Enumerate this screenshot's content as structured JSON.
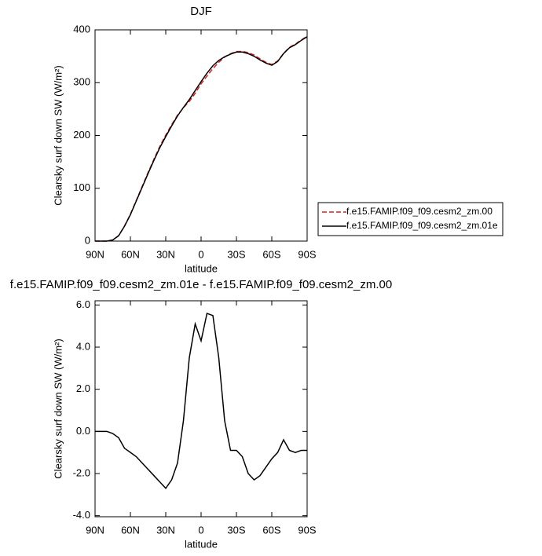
{
  "chart_data": [
    {
      "type": "line",
      "title": "DJF",
      "xlabel": "latitude",
      "ylabel": "Clearsky surf down SW (W/m²)",
      "x": [
        90,
        85,
        80,
        75,
        70,
        65,
        60,
        55,
        50,
        45,
        40,
        35,
        30,
        25,
        20,
        15,
        10,
        5,
        0,
        -5,
        -10,
        -15,
        -20,
        -25,
        -30,
        -35,
        -40,
        -45,
        -50,
        -55,
        -60,
        -65,
        -70,
        -75,
        -80,
        -85,
        -90
      ],
      "series": [
        {
          "name": "f.e15.FAMIP.f09_f09.cesm2_zm.00",
          "color": "#d62020",
          "linestyle": "dashed",
          "values": [
            0,
            0,
            0,
            2.1,
            10.3,
            28.8,
            51,
            77.2,
            103.5,
            129.8,
            155.1,
            179.4,
            200.7,
            220.3,
            238.5,
            252.5,
            264.5,
            279.9,
            297.7,
            312.4,
            326.5,
            338.5,
            348.5,
            354.9,
            358.9,
            359.2,
            357,
            352.3,
            345.1,
            338.7,
            334.3,
            341,
            355.4,
            366.9,
            373,
            380.9,
            387.9
          ]
        },
        {
          "name": "f.e15.FAMIP.f09_f09.cesm2_zm.01e",
          "color": "#000000",
          "linestyle": "solid",
          "values": [
            0,
            0,
            0,
            2,
            10,
            28,
            50,
            76,
            102,
            128,
            153,
            177,
            198,
            218,
            237,
            253,
            268,
            285,
            302,
            318,
            332,
            342,
            349,
            354,
            358,
            358,
            355,
            350,
            343,
            337,
            333,
            340,
            355,
            366,
            372,
            380,
            387
          ]
        }
      ],
      "xlim": [
        90,
        -90
      ],
      "xticks": [
        {
          "value": 90,
          "label": "90N"
        },
        {
          "value": 60,
          "label": "60N"
        },
        {
          "value": 30,
          "label": "30N"
        },
        0,
        {
          "value": -30,
          "label": "30S"
        },
        {
          "value": -60,
          "label": "60S"
        },
        {
          "value": -90,
          "label": "90S"
        }
      ],
      "ylim": [
        0,
        400
      ],
      "yticks": [
        0,
        100,
        200,
        300,
        400
      ],
      "legend": "right"
    },
    {
      "type": "line",
      "title": "f.e15.FAMIP.f09_f09.cesm2_zm.01e - f.e15.FAMIP.f09_f09.cesm2_zm.00",
      "xlabel": "latitude",
      "ylabel": "Clearsky surf down SW (W/m²)",
      "x": [
        90,
        85,
        80,
        75,
        70,
        65,
        60,
        55,
        50,
        45,
        40,
        35,
        30,
        25,
        20,
        15,
        10,
        5,
        0,
        -5,
        -10,
        -15,
        -20,
        -25,
        -30,
        -35,
        -40,
        -45,
        -50,
        -55,
        -60,
        -65,
        -70,
        -75,
        -80,
        -85,
        -90
      ],
      "series": [
        {
          "color": "#000000",
          "linestyle": "solid",
          "values": [
            0,
            0,
            0,
            -0.1,
            -0.3,
            -0.8,
            -1.0,
            -1.2,
            -1.5,
            -1.8,
            -2.1,
            -2.4,
            -2.7,
            -2.3,
            -1.5,
            0.5,
            3.5,
            5.1,
            4.3,
            5.6,
            5.5,
            3.5,
            0.5,
            -0.9,
            -0.9,
            -1.2,
            -2.0,
            -2.3,
            -2.1,
            -1.7,
            -1.3,
            -1.0,
            -0.4,
            -0.9,
            -1.0,
            -0.9,
            -0.9
          ]
        }
      ],
      "xlim": [
        90,
        -90
      ],
      "xticks": [
        {
          "value": 90,
          "label": "90N"
        },
        {
          "value": 60,
          "label": "60N"
        },
        {
          "value": 30,
          "label": "30N"
        },
        0,
        {
          "value": -30,
          "label": "30S"
        },
        {
          "value": -60,
          "label": "60S"
        },
        {
          "value": -90,
          "label": "90S"
        }
      ],
      "ylim": [
        -4.05,
        6.2
      ],
      "yticks": [
        {
          "value": -4,
          "label": "-4.0"
        },
        {
          "value": -2,
          "label": "-2.0"
        },
        {
          "value": 0,
          "label": "0.0"
        },
        {
          "value": 2,
          "label": "2.0"
        },
        {
          "value": 4,
          "label": "4.0"
        },
        {
          "value": 6,
          "label": "6.0"
        }
      ]
    }
  ]
}
